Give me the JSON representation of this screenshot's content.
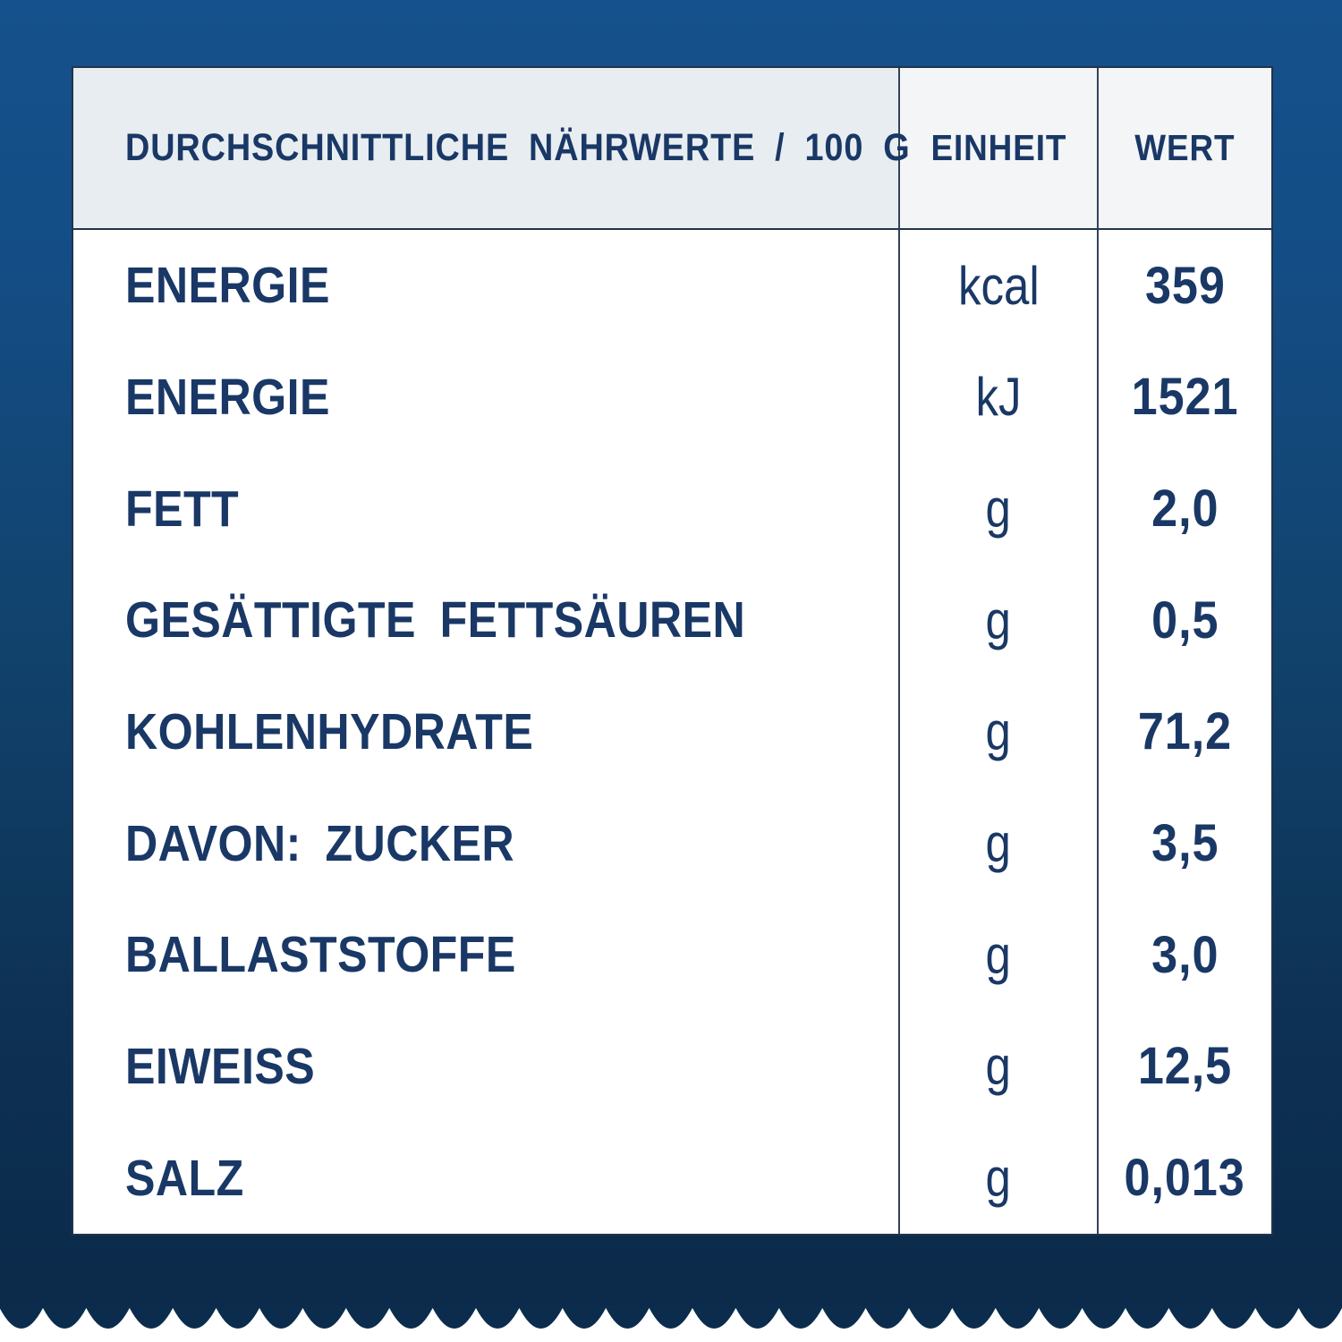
{
  "colors": {
    "background_top": "#15518c",
    "background_bottom": "#0c2a4a",
    "card_bg": "#ffffff",
    "header_label_bg": "#e8edf1",
    "header_cols_bg": "#f3f5f7",
    "text_navy": "#1a3866",
    "divider": "#31435a"
  },
  "table": {
    "header": {
      "label": "DURCHSCHNITTLICHE NÄHRWERTE / 100 G",
      "unit": "EINHEIT",
      "value": "WERT"
    },
    "rows": [
      {
        "label": "ENERGIE",
        "unit": "kcal",
        "value": "359"
      },
      {
        "label": "ENERGIE",
        "unit": "kJ",
        "value": "1521"
      },
      {
        "label": "FETT",
        "unit": "g",
        "value": "2,0"
      },
      {
        "label": "GESÄTTIGTE FETTSÄUREN",
        "unit": "g",
        "value": "0,5"
      },
      {
        "label": "KOHLENHYDRATE",
        "unit": "g",
        "value": "71,2"
      },
      {
        "label": "DAVON: ZUCKER",
        "unit": "g",
        "value": "3,5"
      },
      {
        "label": "BALLASTSTOFFE",
        "unit": "g",
        "value": "3,0"
      },
      {
        "label": "EIWEISS",
        "unit": "g",
        "value": "12,5"
      },
      {
        "label": "SALZ",
        "unit": "g",
        "value": "0,013"
      }
    ]
  }
}
